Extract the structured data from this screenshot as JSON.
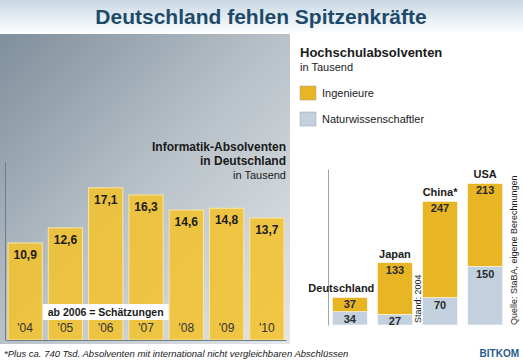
{
  "title": "Deutschland fehlen Spitzenkräfte",
  "chart_data": [
    {
      "type": "bar",
      "title": "Informatik-Absolventen in Deutschland",
      "subtitle": "in Tausend",
      "categories": [
        "'04",
        "'05",
        "'06",
        "'07",
        "'08",
        "'09",
        "'10"
      ],
      "values": [
        10.9,
        12.6,
        17.1,
        16.3,
        14.6,
        14.8,
        13.7
      ],
      "value_labels": [
        "10,9",
        "12,6",
        "17,1",
        "16,3",
        "14,6",
        "14,8",
        "13,7"
      ],
      "color": "#f2c12e",
      "ylim": [
        0,
        20
      ],
      "data_labels": true,
      "tick_labels": "x",
      "annotations": [
        "ab 2006 = Schätzungen"
      ]
    },
    {
      "type": "bar",
      "stacked": true,
      "title": "Hochschulabsolventen",
      "subtitle": "in Tausend",
      "categories": [
        "Deutschland",
        "Japan",
        "China*",
        "USA"
      ],
      "series": [
        {
          "name": "Naturwissenschaftler",
          "color": "#c3d1de",
          "values": [
            34,
            27,
            70,
            150
          ]
        },
        {
          "name": "Ingenieure",
          "color": "#e8b524",
          "values": [
            37,
            133,
            247,
            213
          ]
        }
      ],
      "ylim": [
        0,
        400
      ],
      "data_labels": true,
      "tick_labels": "x",
      "legend": "upper-left",
      "annotations": [
        "Stand: 2004",
        "Quelle: StaBA, eigene Berechnungen"
      ]
    }
  ],
  "footnote": "*Plus ca. 740 Tsd. Absolventen mit international nicht vergleichbaren Abschlüssen",
  "logo": "BITKOM"
}
